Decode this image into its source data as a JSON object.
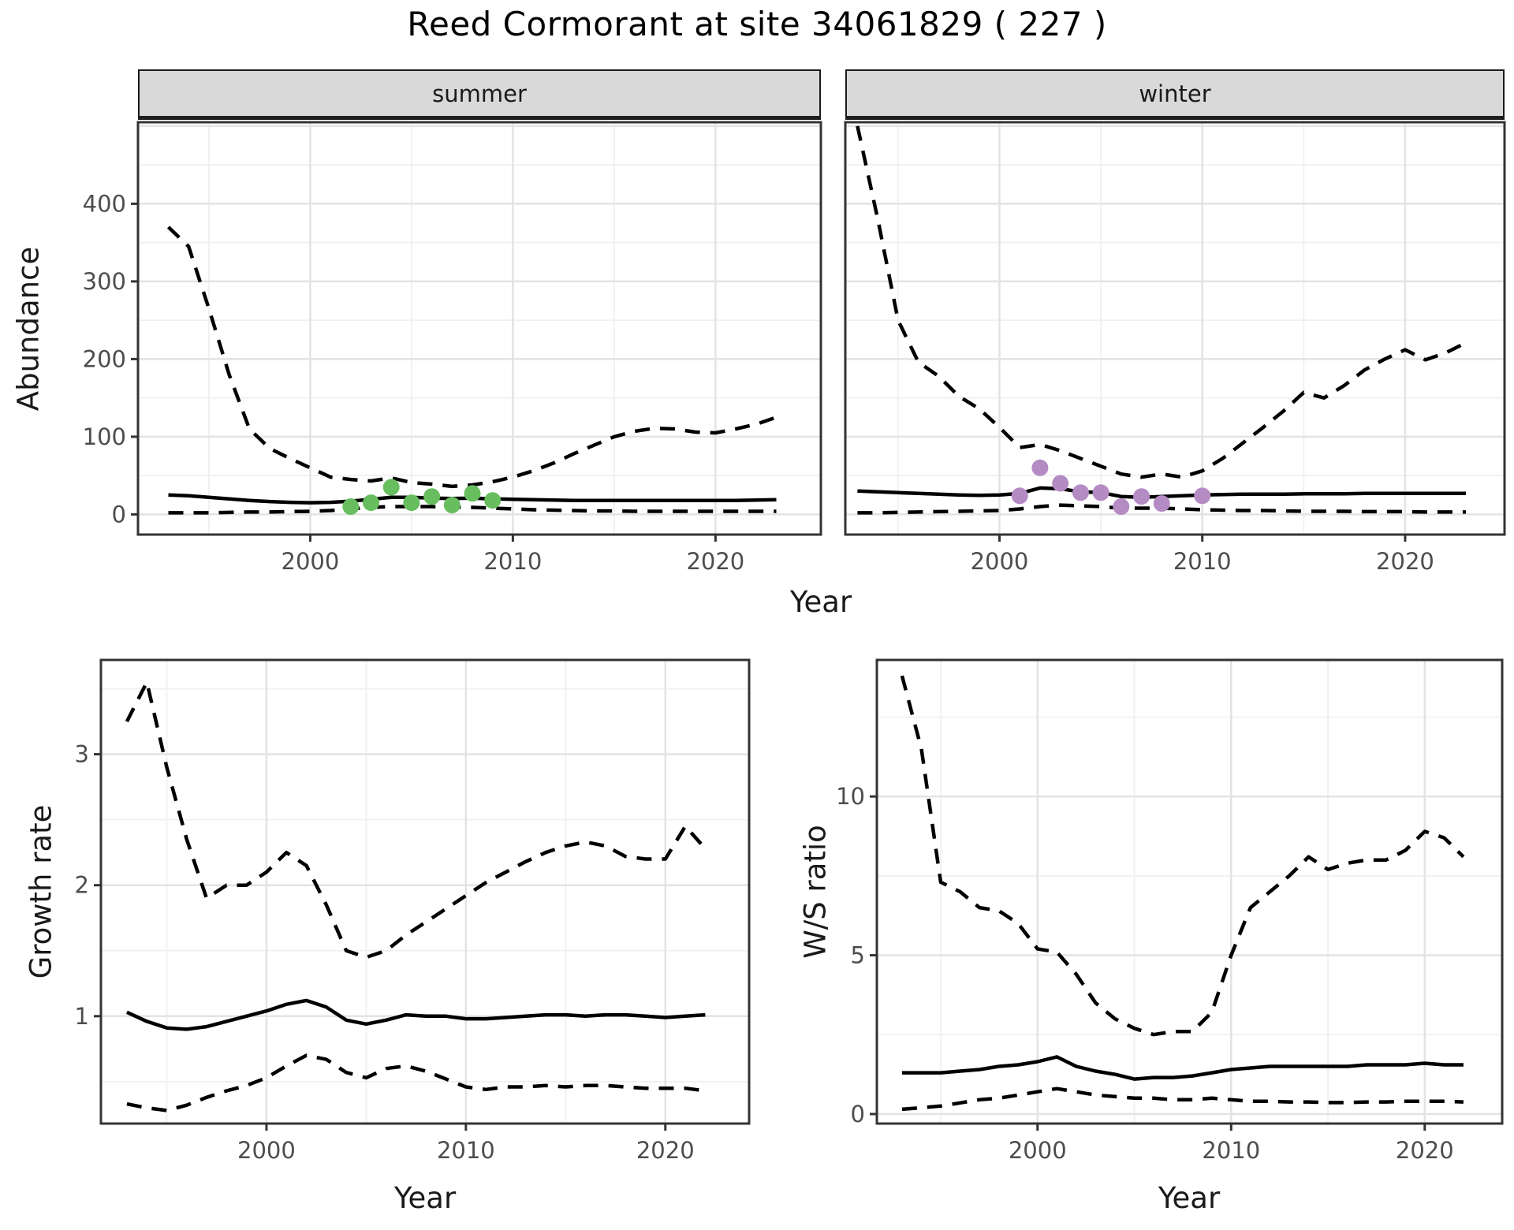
{
  "title": "Reed Cormorant at site 34061829 ( 227 )",
  "colors": {
    "point_green": "#68BE5F",
    "point_purple": "#B58BC4",
    "strip_fill": "#D9D9D9",
    "grid_major": "#E3E3E3",
    "grid_minor": "#F0F0F0",
    "line": "#000000",
    "panel_border": "#333333",
    "tick_text": "#4D4D4D",
    "panel_bg": "#FFFFFF"
  },
  "chart_data": [
    {
      "id": "abundance",
      "type": "line",
      "ylabel": "Abundance",
      "xlabel": "Year",
      "yticks": [
        0,
        100,
        200,
        300,
        400
      ],
      "xticks": [
        2000,
        2010,
        2020
      ],
      "ylim": [
        -26,
        505
      ],
      "xlim": [
        1991.5,
        2025.2
      ],
      "grid": true,
      "legend": "none",
      "x": [
        1993,
        1994,
        1995,
        1996,
        1997,
        1998,
        1999,
        2000,
        2001,
        2002,
        2003,
        2004,
        2005,
        2006,
        2007,
        2008,
        2009,
        2010,
        2011,
        2012,
        2013,
        2014,
        2015,
        2016,
        2017,
        2018,
        2019,
        2020,
        2021,
        2022,
        2023
      ],
      "facets": [
        {
          "label": "summer",
          "point_color": "#68BE5F",
          "series": [
            {
              "name": "upper_ci",
              "style": "dashed",
              "values": [
                370,
                345,
                265,
                180,
                110,
                85,
                72,
                60,
                48,
                45,
                43,
                47,
                41,
                39,
                36,
                38,
                42,
                48,
                56,
                66,
                78,
                89,
                100,
                107,
                111,
                110,
                106,
                105,
                110,
                116,
                125
              ]
            },
            {
              "name": "lower_ci",
              "style": "dashed",
              "values": [
                2,
                2,
                2,
                2.5,
                3,
                3,
                3.5,
                4,
                5,
                7,
                9,
                10,
                10,
                10,
                9.5,
                9,
                8,
                7,
                6,
                5.5,
                5,
                4.5,
                4.5,
                4,
                4,
                4,
                4,
                4,
                4,
                4,
                4
              ]
            },
            {
              "name": "median",
              "style": "solid",
              "values": [
                25,
                24,
                22,
                20,
                18,
                16.5,
                15.5,
                15,
                15.5,
                17,
                19.5,
                22,
                22,
                21,
                20.5,
                21,
                20,
                19.5,
                19,
                18.5,
                18,
                18,
                18,
                18,
                18,
                18,
                18,
                18,
                18,
                18.5,
                19
              ]
            }
          ],
          "points": {
            "x": [
              2002,
              2003,
              2004,
              2005,
              2006,
              2007,
              2008,
              2009
            ],
            "y": [
              10,
              15,
              35,
              15,
              23,
              12,
              27,
              18
            ]
          }
        },
        {
          "label": "winter",
          "point_color": "#B58BC4",
          "series": [
            {
              "name": "upper_ci",
              "style": "dashed",
              "values": [
                500,
                380,
                250,
                196,
                178,
                152,
                136,
                112,
                86,
                90,
                82,
                72,
                62,
                52,
                48,
                52,
                48,
                56,
                72,
                92,
                112,
                133,
                157,
                150,
                166,
                186,
                200,
                212,
                199,
                208,
                221
              ]
            },
            {
              "name": "lower_ci",
              "style": "dashed",
              "values": [
                2,
                2,
                2.5,
                3,
                3.5,
                4,
                4.5,
                5,
                7,
                10,
                12,
                11,
                10,
                8,
                8,
                8,
                7,
                6,
                5.5,
                5,
                5,
                4.5,
                4,
                4,
                4,
                3.5,
                3.5,
                3.5,
                3,
                3,
                3
              ]
            },
            {
              "name": "median",
              "style": "solid",
              "values": [
                30,
                29,
                28,
                27,
                26,
                25,
                24.5,
                25,
                27,
                34,
                33,
                29,
                28,
                23,
                22,
                23,
                24,
                25,
                25.5,
                26,
                26,
                26,
                26.5,
                26.5,
                26.5,
                27,
                27,
                27,
                27,
                27,
                27
              ]
            }
          ],
          "points": {
            "x": [
              2001,
              2002,
              2003,
              2004,
              2005,
              2006,
              2007,
              2008,
              2010
            ],
            "y": [
              24,
              60,
              40,
              28,
              28,
              10,
              23,
              14,
              24
            ]
          }
        }
      ]
    },
    {
      "id": "growth_rate",
      "type": "line",
      "ylabel": "Growth rate",
      "xlabel": "Year",
      "yticks": [
        1,
        2,
        3
      ],
      "xticks": [
        2000,
        2010,
        2020
      ],
      "ylim": [
        0.18,
        3.72
      ],
      "xlim": [
        1991.7,
        2024.2
      ],
      "grid": true,
      "legend": "none",
      "x": [
        1993,
        1994,
        1995,
        1996,
        1997,
        1998,
        1999,
        2000,
        2001,
        2002,
        2003,
        2004,
        2005,
        2006,
        2007,
        2008,
        2009,
        2010,
        2011,
        2012,
        2013,
        2014,
        2015,
        2016,
        2017,
        2018,
        2019,
        2020,
        2021,
        2022
      ],
      "series": [
        {
          "name": "upper_ci",
          "style": "dashed",
          "values": [
            3.25,
            3.55,
            2.9,
            2.35,
            1.9,
            2.0,
            2.0,
            2.1,
            2.25,
            2.15,
            1.85,
            1.5,
            1.45,
            1.5,
            1.62,
            1.72,
            1.82,
            1.92,
            2.02,
            2.1,
            2.18,
            2.25,
            2.3,
            2.33,
            2.3,
            2.22,
            2.2,
            2.2,
            2.45,
            2.28
          ]
        },
        {
          "name": "lower_ci",
          "style": "dashed",
          "values": [
            0.33,
            0.3,
            0.28,
            0.32,
            0.38,
            0.43,
            0.47,
            0.53,
            0.62,
            0.7,
            0.67,
            0.57,
            0.53,
            0.6,
            0.62,
            0.58,
            0.52,
            0.46,
            0.44,
            0.46,
            0.46,
            0.47,
            0.46,
            0.47,
            0.47,
            0.46,
            0.45,
            0.45,
            0.45,
            0.43
          ]
        },
        {
          "name": "median",
          "style": "solid",
          "values": [
            1.03,
            0.96,
            0.91,
            0.9,
            0.92,
            0.96,
            1.0,
            1.04,
            1.09,
            1.12,
            1.07,
            0.97,
            0.94,
            0.97,
            1.01,
            1.0,
            1.0,
            0.98,
            0.98,
            0.99,
            1.0,
            1.01,
            1.01,
            1.0,
            1.01,
            1.01,
            1.0,
            0.99,
            1.0,
            1.01
          ]
        }
      ]
    },
    {
      "id": "ws_ratio",
      "type": "line",
      "ylabel": "W/S ratio",
      "xlabel": "Year",
      "yticks": [
        0,
        5,
        10
      ],
      "xticks": [
        2000,
        2010,
        2020
      ],
      "ylim": [
        -0.3,
        14.3
      ],
      "xlim": [
        1991.7,
        2024.0
      ],
      "grid": true,
      "legend": "none",
      "x": [
        1993,
        1994,
        1995,
        1996,
        1997,
        1998,
        1999,
        2000,
        2001,
        2002,
        2003,
        2004,
        2005,
        2006,
        2007,
        2008,
        2009,
        2010,
        2011,
        2012,
        2013,
        2014,
        2015,
        2016,
        2017,
        2018,
        2019,
        2020,
        2021,
        2022
      ],
      "series": [
        {
          "name": "upper_ci",
          "style": "dashed",
          "values": [
            13.8,
            11.5,
            7.3,
            7.0,
            6.5,
            6.4,
            6.0,
            5.2,
            5.1,
            4.4,
            3.5,
            3.0,
            2.7,
            2.5,
            2.6,
            2.6,
            3.2,
            5.0,
            6.5,
            7.0,
            7.5,
            8.1,
            7.7,
            7.9,
            8.0,
            8.0,
            8.3,
            8.9,
            8.7,
            8.1
          ]
        },
        {
          "name": "lower_ci",
          "style": "dashed",
          "values": [
            0.15,
            0.2,
            0.25,
            0.35,
            0.45,
            0.5,
            0.6,
            0.7,
            0.8,
            0.7,
            0.6,
            0.55,
            0.5,
            0.5,
            0.45,
            0.45,
            0.5,
            0.45,
            0.4,
            0.4,
            0.38,
            0.38,
            0.36,
            0.36,
            0.38,
            0.38,
            0.4,
            0.4,
            0.4,
            0.38
          ]
        },
        {
          "name": "median",
          "style": "solid",
          "values": [
            1.3,
            1.3,
            1.3,
            1.35,
            1.4,
            1.5,
            1.55,
            1.65,
            1.8,
            1.5,
            1.35,
            1.25,
            1.1,
            1.15,
            1.15,
            1.2,
            1.3,
            1.4,
            1.45,
            1.5,
            1.5,
            1.5,
            1.5,
            1.5,
            1.55,
            1.55,
            1.55,
            1.6,
            1.55,
            1.55
          ]
        }
      ]
    }
  ]
}
